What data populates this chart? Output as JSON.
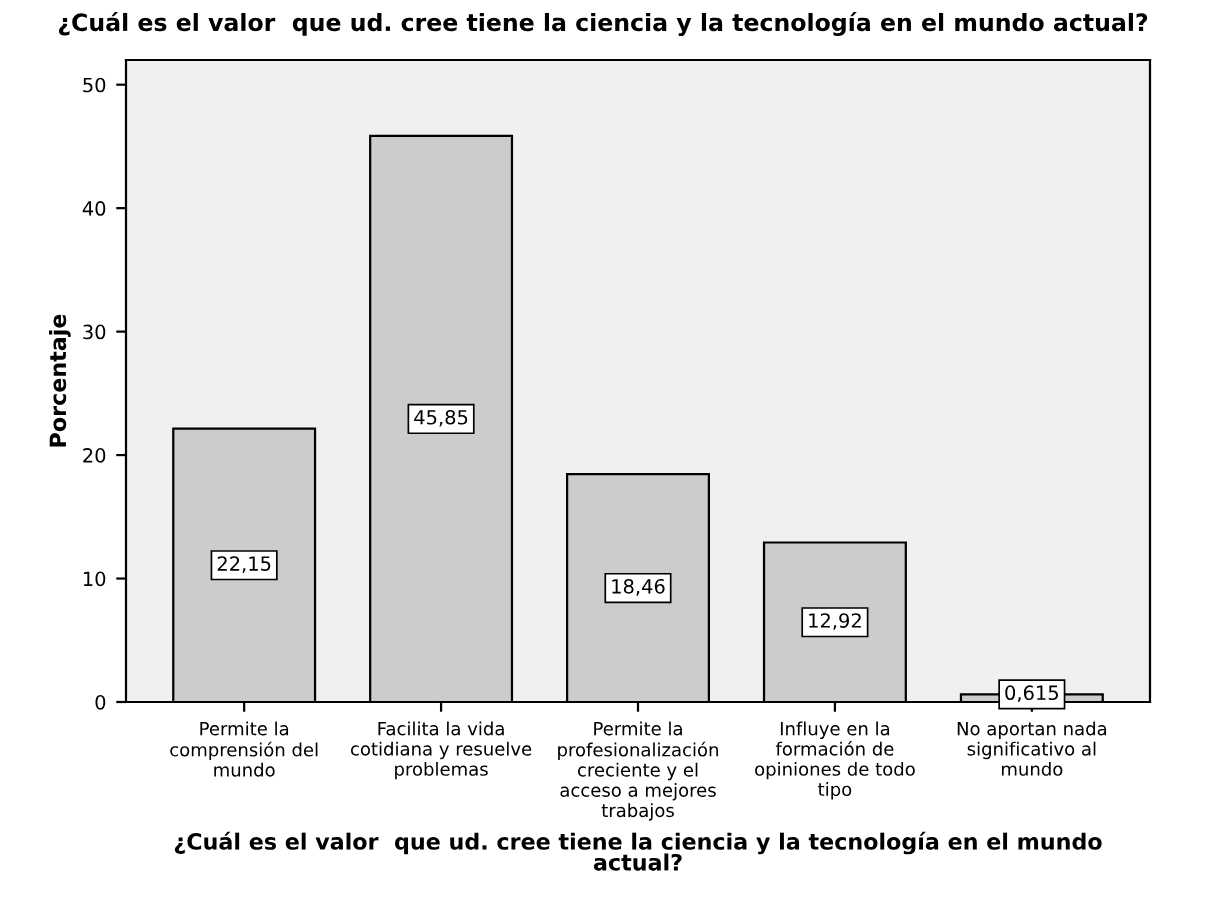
{
  "chart_data": {
    "type": "bar",
    "title": "¿Cuál es el valor  que ud. cree tiene la ciencia y la tecnología en el mundo actual?",
    "xlabel": "¿Cuál es el valor  que ud. cree tiene la ciencia y la tecnología en el mundo\nactual?",
    "ylabel": "Porcentaje",
    "categories": [
      "Permite la\ncomprensión del\nmundo",
      "Facilita la vida\ncotidiana y resuelve\nproblemas",
      "Permite la\nprofesionalización\ncreciente y el\nacceso a mejores\ntrabajos",
      "Influye en la\nformación de\nopiniones de todo\ntipo",
      "No aportan nada\nsignificativo al\nmundo"
    ],
    "values": [
      22.15,
      45.85,
      18.46,
      12.92,
      0.615
    ],
    "value_labels": [
      "22,15",
      "45,85",
      "18,46",
      "12,92",
      "0,615"
    ],
    "color": "#cccccc",
    "ylim": [
      0,
      52
    ],
    "yticks": [
      0,
      10,
      20,
      30,
      40,
      50
    ],
    "grid": false,
    "legend": false
  }
}
